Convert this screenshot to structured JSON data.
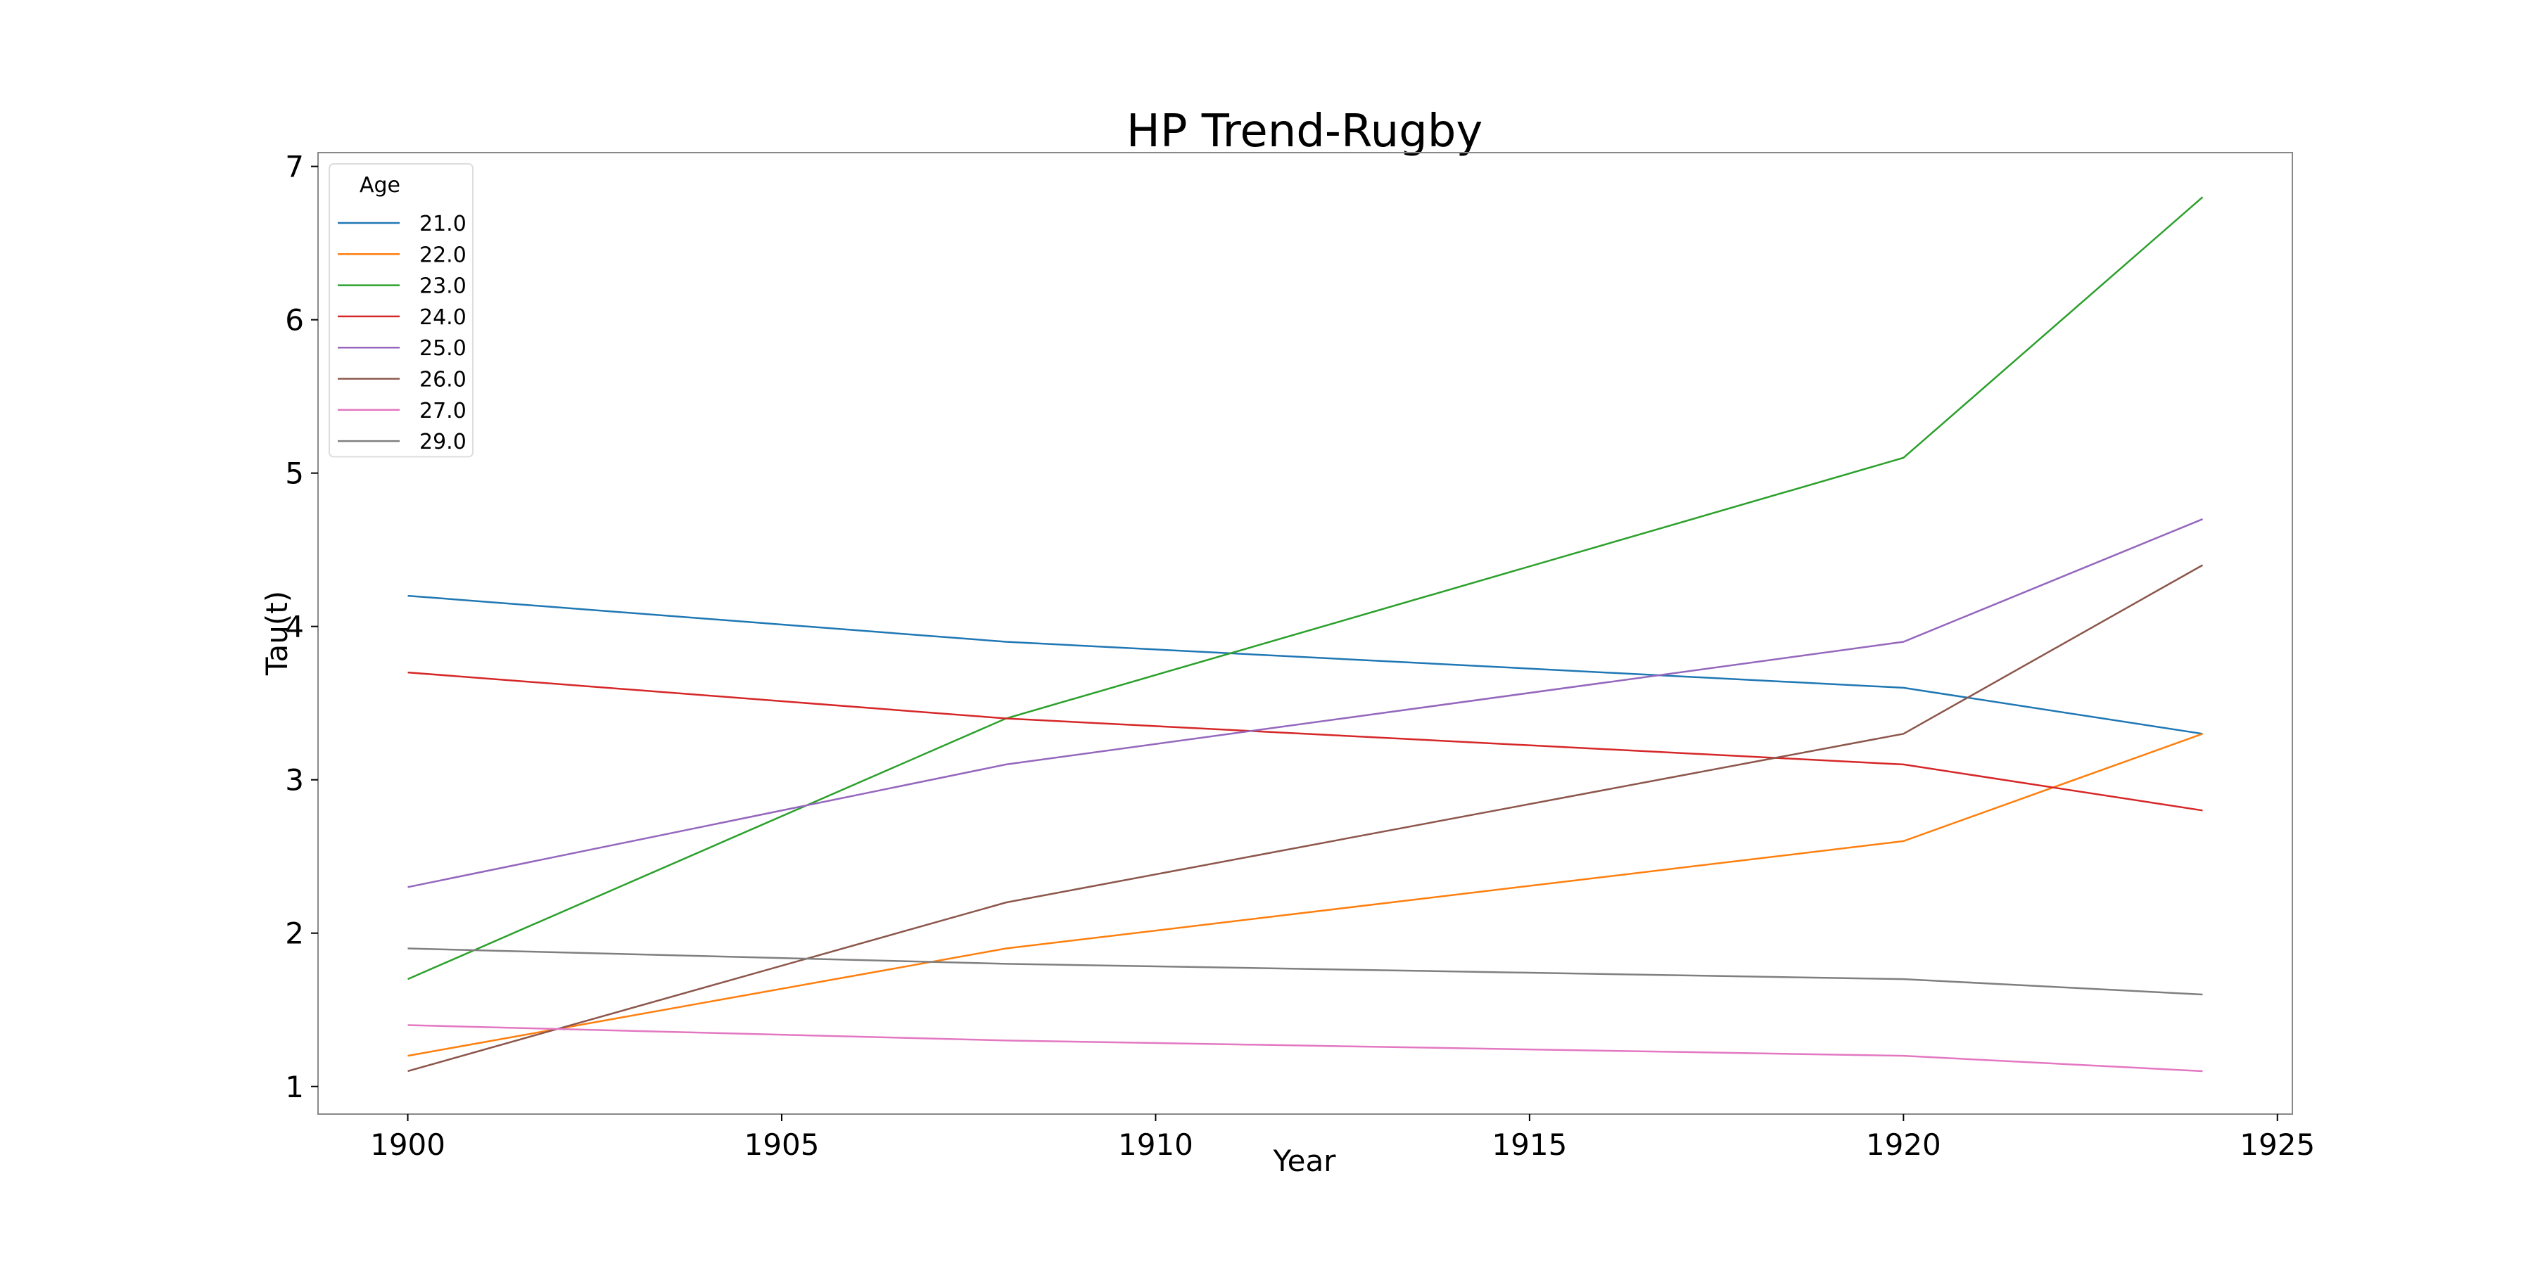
{
  "chart_data": {
    "type": "line",
    "title": "HP Trend-Rugby",
    "xlabel": "Year",
    "ylabel": "Tau(t)",
    "x": [
      1900,
      1908,
      1920,
      1924
    ],
    "xlim": [
      1898.8,
      1925.2
    ],
    "ylim": [
      0.82,
      7.09
    ],
    "xticks": [
      "1900",
      "1905",
      "1910",
      "1915",
      "1920",
      "1925"
    ],
    "yticks": [
      "1",
      "2",
      "3",
      "4",
      "5",
      "6",
      "7"
    ],
    "grid": false,
    "legend": {
      "title": "Age",
      "placement": "top-left"
    },
    "series": [
      {
        "name": "21.0",
        "color": "#1f77b4",
        "values": [
          4.2,
          3.9,
          3.6,
          3.3
        ]
      },
      {
        "name": "22.0",
        "color": "#ff7f0e",
        "values": [
          1.2,
          1.9,
          2.6,
          3.3
        ]
      },
      {
        "name": "23.0",
        "color": "#2ca02c",
        "values": [
          1.7,
          3.4,
          5.1,
          6.8
        ]
      },
      {
        "name": "24.0",
        "color": "#d62728",
        "values": [
          3.7,
          3.4,
          3.1,
          2.8
        ]
      },
      {
        "name": "25.0",
        "color": "#9467bd",
        "values": [
          2.3,
          3.1,
          3.9,
          4.7
        ]
      },
      {
        "name": "26.0",
        "color": "#8c564b",
        "values": [
          1.1,
          2.2,
          3.3,
          4.4
        ]
      },
      {
        "name": "27.0",
        "color": "#e377c2",
        "values": [
          1.4,
          1.3,
          1.2,
          1.1
        ]
      },
      {
        "name": "29.0",
        "color": "#7f7f7f",
        "values": [
          1.9,
          1.8,
          1.7,
          1.6
        ]
      }
    ]
  }
}
